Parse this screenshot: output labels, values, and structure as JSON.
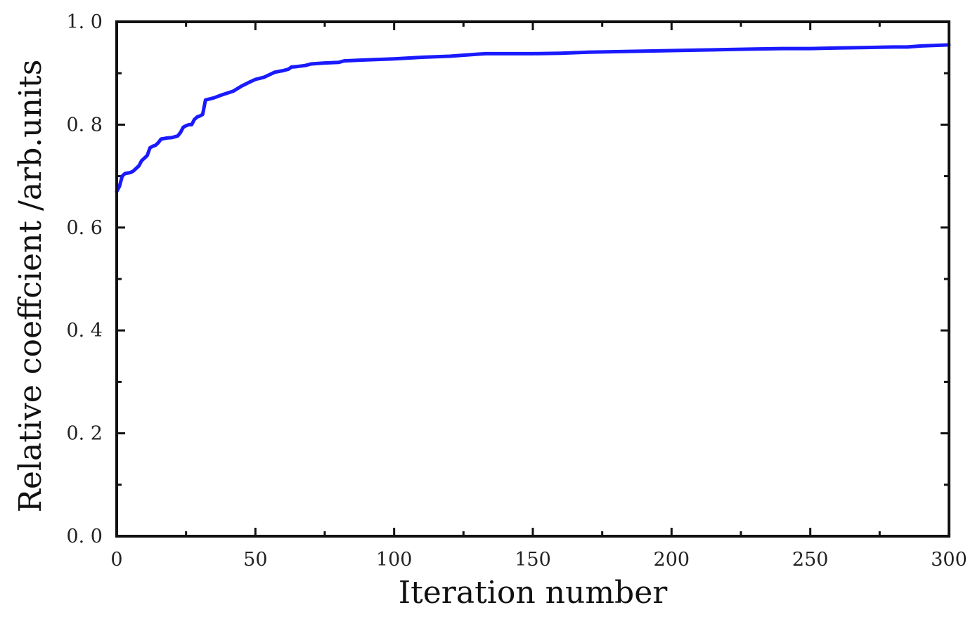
{
  "chart_data": {
    "type": "line",
    "title": "",
    "xlabel": "Iteration number",
    "ylabel": "Relative coeffcient /arb.units",
    "xlim": [
      0,
      300
    ],
    "ylim": [
      0.0,
      1.0
    ],
    "x_ticks": [
      0,
      50,
      100,
      150,
      200,
      250,
      300
    ],
    "x_tick_labels": [
      "0",
      "50",
      "100",
      "150",
      "200",
      "250",
      "300"
    ],
    "y_ticks": [
      0.0,
      0.2,
      0.4,
      0.6,
      0.8,
      1.0
    ],
    "y_tick_labels": [
      "0. 0",
      "0. 2",
      "0. 4",
      "0. 6",
      "0. 8",
      "1. 0"
    ],
    "grid": false,
    "legend": "none",
    "colors": {
      "line": "#1a1aff",
      "frame": "#111111"
    },
    "series": [
      {
        "x": [
          0,
          1,
          2,
          3,
          5,
          6,
          8,
          9,
          10,
          11,
          12,
          13,
          14,
          15,
          16,
          17,
          18,
          20,
          22,
          23,
          24,
          25,
          26,
          27,
          28,
          29,
          30,
          31,
          32,
          35,
          38,
          42,
          45,
          48,
          50,
          53,
          55,
          57,
          60,
          62,
          63,
          65,
          68,
          70,
          75,
          80,
          82,
          90,
          100,
          110,
          120,
          130,
          133,
          135,
          150,
          160,
          170,
          180,
          190,
          200,
          210,
          220,
          230,
          240,
          250,
          260,
          270,
          280,
          285,
          290,
          300
        ],
        "y": [
          0.67,
          0.68,
          0.7,
          0.705,
          0.707,
          0.71,
          0.72,
          0.73,
          0.735,
          0.74,
          0.755,
          0.758,
          0.76,
          0.765,
          0.772,
          0.773,
          0.774,
          0.775,
          0.778,
          0.785,
          0.795,
          0.798,
          0.8,
          0.8,
          0.81,
          0.815,
          0.817,
          0.82,
          0.848,
          0.852,
          0.858,
          0.865,
          0.875,
          0.883,
          0.888,
          0.892,
          0.897,
          0.902,
          0.905,
          0.908,
          0.912,
          0.913,
          0.915,
          0.918,
          0.92,
          0.921,
          0.924,
          0.926,
          0.928,
          0.931,
          0.933,
          0.937,
          0.938,
          0.938,
          0.938,
          0.939,
          0.941,
          0.942,
          0.943,
          0.944,
          0.945,
          0.946,
          0.947,
          0.948,
          0.948,
          0.949,
          0.95,
          0.951,
          0.951,
          0.953,
          0.955
        ]
      }
    ]
  }
}
